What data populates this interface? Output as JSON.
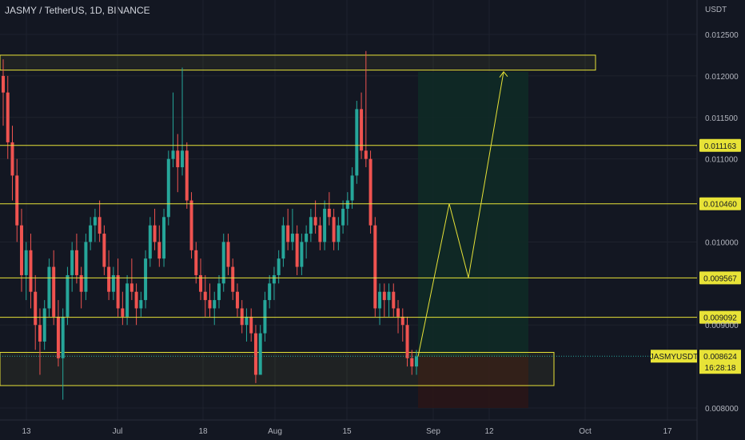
{
  "header": {
    "symbol": "JASMY / TetherUS",
    "interval": "1D",
    "exchange": "BINANCE",
    "title": "JASMY / TetherUS, 1D, BINANCE"
  },
  "colors": {
    "background": "#131722",
    "up": "#26a69a",
    "down": "#ef5350",
    "level_line": "#e8e337",
    "grid": "#1e222d",
    "axis_text": "#b2b5be",
    "target_zone": "#0f2a26",
    "stop_zone": "#2a1517"
  },
  "chart_data": {
    "type": "candlestick",
    "currency": "USDT",
    "y_ticks": [
      "0.012500",
      "0.012000",
      "0.011500",
      "0.011000",
      "0.010000",
      "0.009000",
      "0.008000"
    ],
    "x_ticks": [
      "13",
      "Jul",
      "18",
      "Aug",
      "15",
      "Sep",
      "12",
      "Oct",
      "17"
    ],
    "ylim": [
      0.0079,
      0.01275
    ],
    "grid": true,
    "price_levels": [
      "0.011163",
      "0.010460",
      "0.009567",
      "0.009092"
    ],
    "zones": {
      "resistance": [
        0.01207,
        0.01225
      ],
      "support": [
        0.00827,
        0.00867
      ]
    },
    "last_price": {
      "label": "JASMYUSDT",
      "value": "0.008624",
      "countdown": "16:28:18"
    },
    "projection": {
      "entry": 0.00862,
      "target": 0.01205,
      "stop": 0.008,
      "path": [
        0.00862,
        0.01046,
        0.00957,
        0.01205
      ]
    },
    "candles": [
      [
        0.012,
        0.0122,
        0.0114,
        0.0118
      ],
      [
        0.0118,
        0.012,
        0.011,
        0.0112
      ],
      [
        0.0112,
        0.0114,
        0.0105,
        0.0108
      ],
      [
        0.0108,
        0.011,
        0.01,
        0.0102
      ],
      [
        0.0102,
        0.0104,
        0.0094,
        0.0096
      ],
      [
        0.0096,
        0.01,
        0.0093,
        0.0099
      ],
      [
        0.0099,
        0.0101,
        0.0092,
        0.0094
      ],
      [
        0.0094,
        0.0096,
        0.0087,
        0.009
      ],
      [
        0.009,
        0.0092,
        0.0084,
        0.0088
      ],
      [
        0.0088,
        0.0093,
        0.0087,
        0.0092
      ],
      [
        0.0092,
        0.0098,
        0.0091,
        0.0097
      ],
      [
        0.0097,
        0.0099,
        0.009,
        0.0091
      ],
      [
        0.0091,
        0.0093,
        0.0085,
        0.0086
      ],
      [
        0.0086,
        0.0092,
        0.0081,
        0.0091
      ],
      [
        0.0091,
        0.0097,
        0.009,
        0.0096
      ],
      [
        0.0096,
        0.01,
        0.0094,
        0.0099
      ],
      [
        0.0099,
        0.0101,
        0.0095,
        0.0096
      ],
      [
        0.0096,
        0.0097,
        0.0092,
        0.0094
      ],
      [
        0.0094,
        0.0101,
        0.0093,
        0.01
      ],
      [
        0.01,
        0.0103,
        0.0099,
        0.0102
      ],
      [
        0.0102,
        0.0104,
        0.01,
        0.0103
      ],
      [
        0.0103,
        0.0105,
        0.01,
        0.0101
      ],
      [
        0.0101,
        0.0102,
        0.0096,
        0.0097
      ],
      [
        0.0097,
        0.0099,
        0.0093,
        0.0094
      ],
      [
        0.0094,
        0.0097,
        0.0093,
        0.0096
      ],
      [
        0.0096,
        0.0098,
        0.0091,
        0.0092
      ],
      [
        0.0092,
        0.0094,
        0.009,
        0.0091
      ],
      [
        0.0091,
        0.0096,
        0.009,
        0.0095
      ],
      [
        0.0095,
        0.0098,
        0.0093,
        0.0094
      ],
      [
        0.0094,
        0.0095,
        0.009,
        0.0092
      ],
      [
        0.0092,
        0.0094,
        0.0091,
        0.0093
      ],
      [
        0.0093,
        0.0099,
        0.0092,
        0.0098
      ],
      [
        0.0098,
        0.0103,
        0.0097,
        0.0102
      ],
      [
        0.0102,
        0.0104,
        0.0099,
        0.01
      ],
      [
        0.01,
        0.0102,
        0.0097,
        0.0098
      ],
      [
        0.0098,
        0.0104,
        0.0097,
        0.0103
      ],
      [
        0.0103,
        0.0111,
        0.0102,
        0.011
      ],
      [
        0.011,
        0.0118,
        0.0109,
        0.0111
      ],
      [
        0.0111,
        0.0113,
        0.0106,
        0.0109
      ],
      [
        0.0109,
        0.0121,
        0.0108,
        0.0111
      ],
      [
        0.0111,
        0.0112,
        0.0104,
        0.0105
      ],
      [
        0.0105,
        0.0106,
        0.0098,
        0.0099
      ],
      [
        0.0099,
        0.01,
        0.0095,
        0.0096
      ],
      [
        0.0096,
        0.0098,
        0.0093,
        0.0094
      ],
      [
        0.0094,
        0.0096,
        0.0091,
        0.0093
      ],
      [
        0.0093,
        0.0095,
        0.0091,
        0.0092
      ],
      [
        0.0092,
        0.0094,
        0.009,
        0.0093
      ],
      [
        0.0093,
        0.0096,
        0.0092,
        0.0095
      ],
      [
        0.0095,
        0.0101,
        0.0094,
        0.01
      ],
      [
        0.01,
        0.0101,
        0.0096,
        0.0097
      ],
      [
        0.0097,
        0.0098,
        0.0093,
        0.0094
      ],
      [
        0.0094,
        0.0095,
        0.0091,
        0.0092
      ],
      [
        0.0092,
        0.0093,
        0.0089,
        0.009
      ],
      [
        0.009,
        0.0092,
        0.0088,
        0.0091
      ],
      [
        0.0091,
        0.0092,
        0.0088,
        0.0089
      ],
      [
        0.0089,
        0.009,
        0.0083,
        0.0084
      ],
      [
        0.0084,
        0.009,
        0.0084,
        0.0089
      ],
      [
        0.0089,
        0.0094,
        0.0088,
        0.0093
      ],
      [
        0.0093,
        0.0096,
        0.0092,
        0.0095
      ],
      [
        0.0095,
        0.0097,
        0.0093,
        0.0096
      ],
      [
        0.0096,
        0.0099,
        0.0095,
        0.0098
      ],
      [
        0.0098,
        0.0103,
        0.0097,
        0.0102
      ],
      [
        0.0102,
        0.0104,
        0.0099,
        0.01
      ],
      [
        0.01,
        0.0104,
        0.0099,
        0.0101
      ],
      [
        0.0101,
        0.0102,
        0.0096,
        0.0097
      ],
      [
        0.0097,
        0.0101,
        0.0096,
        0.01
      ],
      [
        0.01,
        0.0102,
        0.0098,
        0.0101
      ],
      [
        0.0101,
        0.0104,
        0.01,
        0.0103
      ],
      [
        0.0103,
        0.0105,
        0.0101,
        0.0102
      ],
      [
        0.0102,
        0.0103,
        0.0099,
        0.01
      ],
      [
        0.01,
        0.0105,
        0.0099,
        0.0104
      ],
      [
        0.0104,
        0.0106,
        0.0102,
        0.0103
      ],
      [
        0.0103,
        0.0104,
        0.0099,
        0.01
      ],
      [
        0.01,
        0.0103,
        0.0099,
        0.0102
      ],
      [
        0.0102,
        0.0105,
        0.0101,
        0.0104
      ],
      [
        0.0104,
        0.0106,
        0.0102,
        0.0105
      ],
      [
        0.0105,
        0.0109,
        0.0104,
        0.0108
      ],
      [
        0.0108,
        0.0117,
        0.0107,
        0.0116
      ],
      [
        0.0116,
        0.0118,
        0.011,
        0.0111
      ],
      [
        0.0111,
        0.0123,
        0.0109,
        0.011
      ],
      [
        0.011,
        0.0111,
        0.0101,
        0.0102
      ],
      [
        0.0102,
        0.0103,
        0.0091,
        0.0092
      ],
      [
        0.0092,
        0.0095,
        0.009,
        0.0094
      ],
      [
        0.0094,
        0.0095,
        0.0091,
        0.0093
      ],
      [
        0.0093,
        0.0095,
        0.0091,
        0.0094
      ],
      [
        0.0094,
        0.0095,
        0.0091,
        0.0092
      ],
      [
        0.0092,
        0.0093,
        0.0089,
        0.0091
      ],
      [
        0.0091,
        0.0092,
        0.0088,
        0.009
      ],
      [
        0.009,
        0.0091,
        0.0085,
        0.0086
      ],
      [
        0.0086,
        0.0087,
        0.0084,
        0.0085
      ],
      [
        0.0085,
        0.0087,
        0.0084,
        0.00862
      ]
    ]
  }
}
